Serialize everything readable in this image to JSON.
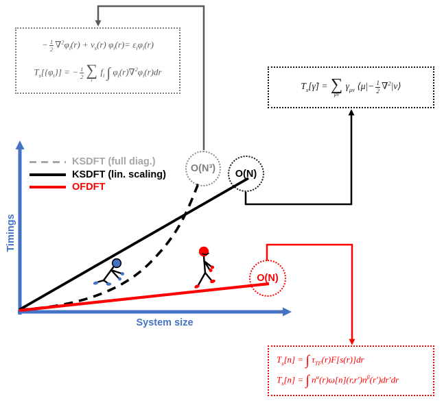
{
  "axes": {
    "y_label": "Timings",
    "x_label": "System size"
  },
  "legend": [
    {
      "label": "KSDFT (full diag.)",
      "line": "dashed",
      "color": "#A6A6A6"
    },
    {
      "label": "KSDFT (lin. scaling)",
      "line": "solid",
      "color": "#000000"
    },
    {
      "label": "OFDFT",
      "line": "solid",
      "color": "#FF0000"
    }
  ],
  "badges": {
    "on3": "O(N³)",
    "on_ks": "O(N)",
    "on_of": "O(N)"
  },
  "colors": {
    "axis_blue": "#4472C4",
    "ofdft_red": "#FF0000",
    "ks_gray": "#595959",
    "legend_gray": "#A6A6A6",
    "black": "#000000"
  },
  "chart": {
    "type": "line",
    "xlabel": "System size",
    "ylabel": "Timings",
    "grid": false,
    "legend_position": "upper-left",
    "series": [
      {
        "name": "KSDFT (full diag.)",
        "scaling": "O(N³)",
        "style": "dashed",
        "color": "#000000",
        "shape": "superlinear curve from origin to O(N³) badge"
      },
      {
        "name": "KSDFT (lin. scaling)",
        "scaling": "O(N)",
        "style": "solid",
        "color": "#000000",
        "shape": "steep straight line from origin to O(N) badge"
      },
      {
        "name": "OFDFT",
        "scaling": "O(N)",
        "style": "solid",
        "color": "#FF0000",
        "shape": "shallow straight line from origin to red O(N) badge"
      }
    ]
  },
  "equations": {
    "ks_line1": [
      [
        "t",
        "−"
      ],
      [
        "f",
        "1",
        "2"
      ],
      [
        "t",
        "∇"
      ],
      [
        "s",
        "2"
      ],
      [
        "t",
        "φ"
      ],
      [
        "b",
        "i"
      ],
      [
        "t",
        "(r) + v"
      ],
      [
        "b",
        "s"
      ],
      [
        "t",
        "(r) φ"
      ],
      [
        "b",
        "i"
      ],
      [
        "t",
        "(r)= ε"
      ],
      [
        "b",
        "i"
      ],
      [
        "t",
        "φ"
      ],
      [
        "b",
        "i"
      ],
      [
        "t",
        "(r)"
      ]
    ],
    "ks_line2": [
      [
        "t",
        "T"
      ],
      [
        "b",
        "s"
      ],
      [
        "t",
        "[{φ"
      ],
      [
        "b",
        "i"
      ],
      [
        "t",
        "}] = −"
      ],
      [
        "f",
        "1",
        "2"
      ],
      [
        "u",
        "∑",
        "i"
      ],
      [
        "t",
        " f"
      ],
      [
        "b",
        "i"
      ],
      [
        "t",
        " "
      ],
      [
        "g",
        "∫"
      ],
      [
        "t",
        " φ"
      ],
      [
        "b",
        "i"
      ],
      [
        "t",
        "(r)∇"
      ],
      [
        "s",
        "2"
      ],
      [
        "t",
        "φ"
      ],
      [
        "b",
        "i"
      ],
      [
        "t",
        "(r)dr"
      ]
    ],
    "gamma": [
      [
        "t",
        "T"
      ],
      [
        "b",
        "s"
      ],
      [
        "t",
        "[γ̂] = "
      ],
      [
        "u",
        "∑",
        "μν"
      ],
      [
        "t",
        " γ"
      ],
      [
        "b",
        "μν"
      ],
      [
        "t",
        " ⟨μ|−"
      ],
      [
        "f",
        "1",
        "2"
      ],
      [
        "t",
        "∇"
      ],
      [
        "s",
        "2"
      ],
      [
        "t",
        "|ν⟩"
      ]
    ],
    "of_line1": [
      [
        "t",
        "T"
      ],
      [
        "b",
        "s"
      ],
      [
        "t",
        "[n] = "
      ],
      [
        "g",
        "∫"
      ],
      [
        "t",
        " τ"
      ],
      [
        "b",
        "TF"
      ],
      [
        "t",
        "(r)F[s(r)]dr"
      ]
    ],
    "of_line2": [
      [
        "t",
        "T"
      ],
      [
        "b",
        "s"
      ],
      [
        "t",
        "[n] = "
      ],
      [
        "g",
        "∫"
      ],
      [
        "t",
        " n"
      ],
      [
        "s",
        "α"
      ],
      [
        "t",
        "(r)ω[n](r,r′)n"
      ],
      [
        "s",
        "β"
      ],
      [
        "t",
        "(r′)dr′dr"
      ]
    ]
  }
}
